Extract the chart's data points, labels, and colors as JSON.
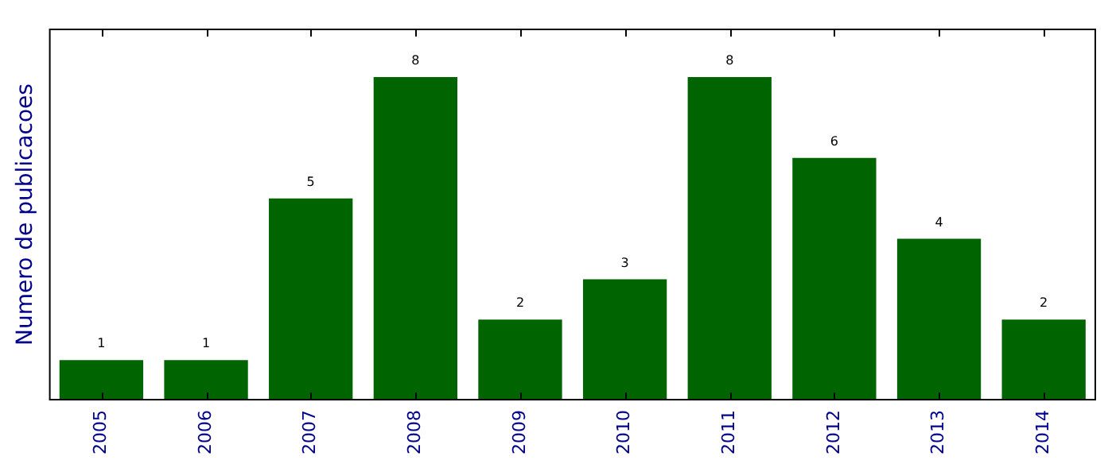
{
  "chart_data": {
    "type": "bar",
    "ylabel": "Numero de publicacoes",
    "categories": [
      "2005",
      "2006",
      "2007",
      "2008",
      "2009",
      "2010",
      "2011",
      "2012",
      "2013",
      "2014"
    ],
    "values": [
      1,
      1,
      5,
      8,
      2,
      3,
      8,
      6,
      4,
      2
    ],
    "color": "#006400",
    "ylim": [
      0,
      9.2
    ],
    "data_labels": true,
    "grid": false,
    "legend": false,
    "tick_labels": "x"
  }
}
